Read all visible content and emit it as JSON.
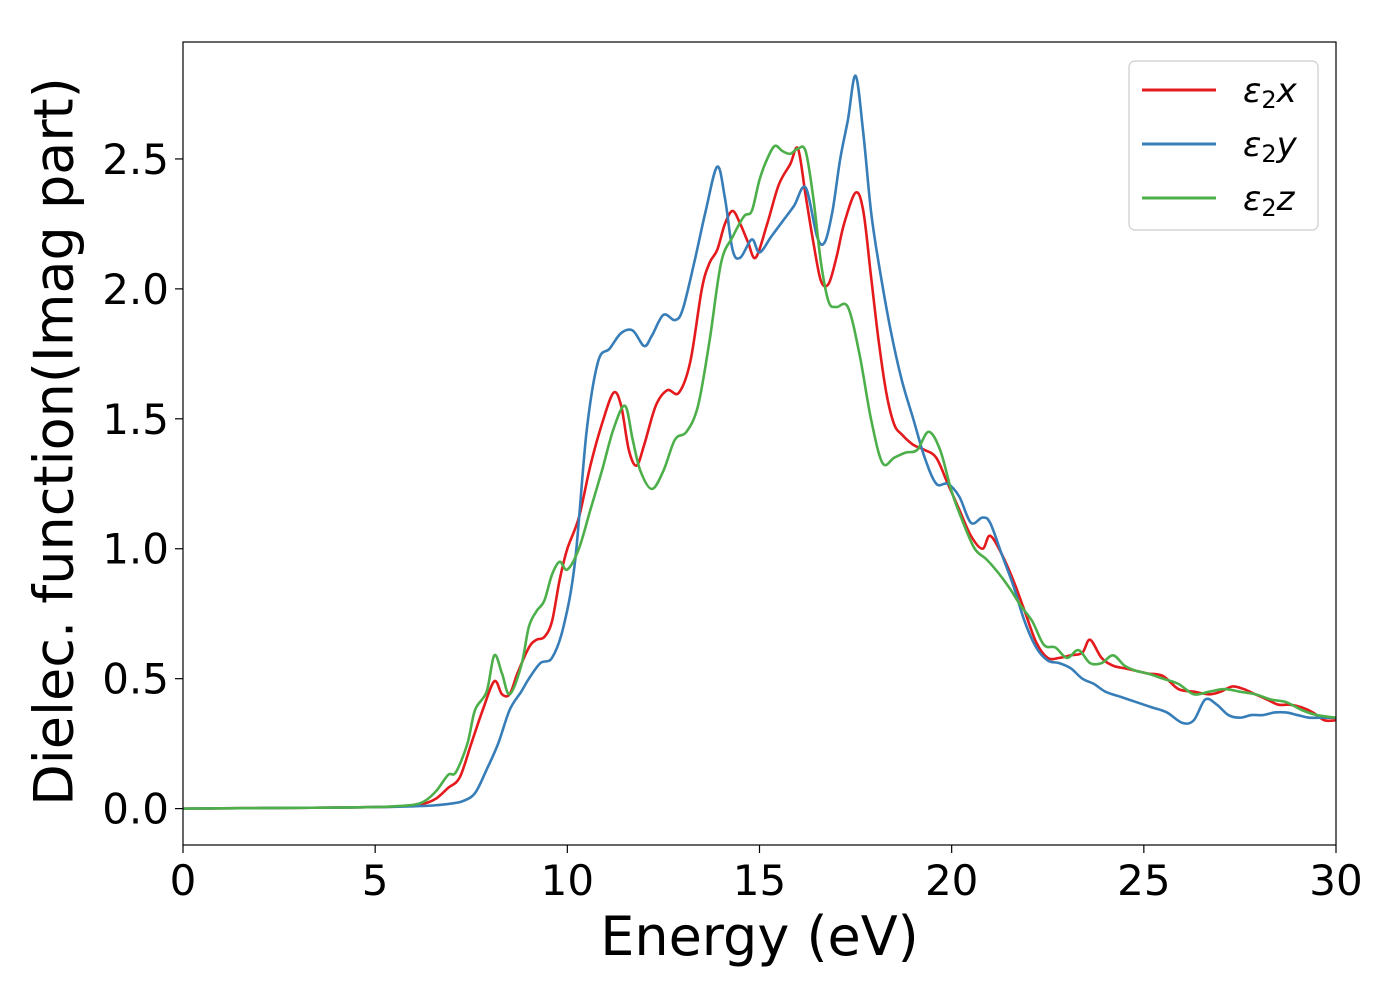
{
  "chart_data": {
    "type": "line",
    "title": "",
    "xlabel": "Energy (eV)",
    "ylabel": "Dielec. function(Imag part)",
    "xlim": [
      0,
      30
    ],
    "ylim": [
      -0.14,
      2.95
    ],
    "xticks": [
      0,
      5,
      10,
      15,
      20,
      25,
      30
    ],
    "yticks": [
      0.0,
      0.5,
      1.0,
      1.5,
      2.0,
      2.5
    ],
    "xtick_labels": [
      "0",
      "5",
      "10",
      "15",
      "20",
      "25",
      "30"
    ],
    "ytick_labels": [
      "0.0",
      "0.5",
      "1.0",
      "1.5",
      "2.0",
      "2.5"
    ],
    "grid": false,
    "legend_position": "top-right",
    "series": [
      {
        "name": "ε₂x",
        "legend_main": "ε",
        "legend_sub": "2",
        "legend_suffix": "x",
        "color": "#e41a1c",
        "x": [
          0,
          1,
          2,
          3,
          4,
          5,
          5.5,
          6,
          6.3,
          6.6,
          6.9,
          7.2,
          7.5,
          7.8,
          8.1,
          8.3,
          8.5,
          8.7,
          9.0,
          9.2,
          9.4,
          9.6,
          9.8,
          10.0,
          10.3,
          10.6,
          10.9,
          11.2,
          11.4,
          11.6,
          11.8,
          12.0,
          12.3,
          12.6,
          12.9,
          13.2,
          13.5,
          13.7,
          13.9,
          14.1,
          14.3,
          14.5,
          14.7,
          14.9,
          15.2,
          15.5,
          15.8,
          16.0,
          16.2,
          16.4,
          16.6,
          16.8,
          17.0,
          17.2,
          17.5,
          17.7,
          17.9,
          18.1,
          18.3,
          18.5,
          18.7,
          19.0,
          19.3,
          19.6,
          19.9,
          20.2,
          20.5,
          20.8,
          21.0,
          21.3,
          21.6,
          21.9,
          22.2,
          22.5,
          22.8,
          23.1,
          23.4,
          23.6,
          23.9,
          24.2,
          24.5,
          24.8,
          25.1,
          25.5,
          25.9,
          26.3,
          26.7,
          27.0,
          27.3,
          27.6,
          27.9,
          28.2,
          28.5,
          28.8,
          29.1,
          29.4,
          29.7,
          30.0
        ],
        "y": [
          0.0,
          0.001,
          0.002,
          0.003,
          0.004,
          0.006,
          0.008,
          0.012,
          0.02,
          0.04,
          0.08,
          0.12,
          0.25,
          0.38,
          0.49,
          0.44,
          0.44,
          0.52,
          0.62,
          0.65,
          0.66,
          0.72,
          0.88,
          1.0,
          1.12,
          1.32,
          1.48,
          1.6,
          1.55,
          1.38,
          1.32,
          1.4,
          1.55,
          1.61,
          1.6,
          1.72,
          2.0,
          2.1,
          2.15,
          2.25,
          2.3,
          2.25,
          2.18,
          2.12,
          2.25,
          2.4,
          2.48,
          2.54,
          2.36,
          2.18,
          2.03,
          2.02,
          2.12,
          2.25,
          2.37,
          2.3,
          2.05,
          1.8,
          1.6,
          1.48,
          1.44,
          1.4,
          1.38,
          1.35,
          1.25,
          1.15,
          1.05,
          1.0,
          1.05,
          0.98,
          0.88,
          0.76,
          0.64,
          0.58,
          0.58,
          0.59,
          0.6,
          0.65,
          0.58,
          0.55,
          0.54,
          0.53,
          0.52,
          0.51,
          0.46,
          0.45,
          0.44,
          0.45,
          0.47,
          0.46,
          0.44,
          0.42,
          0.4,
          0.4,
          0.39,
          0.37,
          0.34,
          0.34
        ]
      },
      {
        "name": "ε₂y",
        "legend_main": "ε",
        "legend_sub": "2",
        "legend_suffix": "y",
        "color": "#377eb8",
        "x": [
          0,
          1,
          2,
          3,
          4,
          5,
          5.5,
          6,
          6.5,
          7.0,
          7.3,
          7.6,
          7.9,
          8.2,
          8.5,
          8.8,
          9.0,
          9.3,
          9.6,
          9.9,
          10.2,
          10.5,
          10.8,
          11.1,
          11.4,
          11.7,
          12.0,
          12.2,
          12.5,
          12.8,
          13.0,
          13.3,
          13.6,
          13.9,
          14.1,
          14.3,
          14.5,
          14.8,
          15.0,
          15.3,
          15.6,
          15.9,
          16.2,
          16.5,
          16.7,
          16.9,
          17.1,
          17.3,
          17.5,
          17.7,
          17.9,
          18.1,
          18.4,
          18.7,
          19.0,
          19.3,
          19.6,
          19.9,
          20.2,
          20.5,
          20.8,
          21.0,
          21.3,
          21.6,
          21.9,
          22.2,
          22.5,
          22.8,
          23.1,
          23.4,
          23.7,
          24.0,
          24.4,
          24.8,
          25.2,
          25.6,
          26.0,
          26.3,
          26.6,
          26.9,
          27.2,
          27.5,
          27.8,
          28.1,
          28.4,
          28.7,
          29.0,
          29.3,
          29.6,
          30.0
        ],
        "y": [
          0.0,
          0.001,
          0.002,
          0.003,
          0.004,
          0.006,
          0.007,
          0.009,
          0.012,
          0.02,
          0.03,
          0.06,
          0.15,
          0.25,
          0.38,
          0.45,
          0.5,
          0.56,
          0.58,
          0.7,
          0.95,
          1.45,
          1.72,
          1.77,
          1.83,
          1.84,
          1.78,
          1.82,
          1.9,
          1.88,
          1.92,
          2.1,
          2.3,
          2.47,
          2.35,
          2.15,
          2.12,
          2.19,
          2.14,
          2.2,
          2.26,
          2.32,
          2.39,
          2.2,
          2.18,
          2.3,
          2.5,
          2.65,
          2.82,
          2.6,
          2.3,
          2.1,
          1.85,
          1.65,
          1.5,
          1.35,
          1.25,
          1.25,
          1.2,
          1.1,
          1.12,
          1.1,
          0.98,
          0.86,
          0.72,
          0.62,
          0.57,
          0.56,
          0.54,
          0.5,
          0.48,
          0.45,
          0.43,
          0.41,
          0.39,
          0.37,
          0.33,
          0.34,
          0.42,
          0.4,
          0.36,
          0.35,
          0.36,
          0.36,
          0.37,
          0.37,
          0.36,
          0.35,
          0.35,
          0.35
        ]
      },
      {
        "name": "ε₂z",
        "legend_main": "ε",
        "legend_sub": "2",
        "legend_suffix": "z",
        "color": "#4daf4a",
        "x": [
          0,
          1,
          2,
          3,
          4,
          5,
          5.5,
          6,
          6.3,
          6.6,
          6.9,
          7.1,
          7.4,
          7.6,
          7.9,
          8.1,
          8.3,
          8.5,
          8.8,
          9.0,
          9.2,
          9.4,
          9.6,
          9.8,
          10.0,
          10.3,
          10.6,
          10.9,
          11.2,
          11.5,
          11.7,
          11.9,
          12.2,
          12.5,
          12.8,
          13.1,
          13.4,
          13.7,
          14.0,
          14.3,
          14.6,
          14.8,
          15.0,
          15.2,
          15.4,
          15.6,
          15.8,
          16.0,
          16.2,
          16.4,
          16.6,
          16.8,
          17.0,
          17.3,
          17.6,
          17.9,
          18.2,
          18.5,
          18.8,
          19.1,
          19.4,
          19.7,
          20.0,
          20.3,
          20.6,
          20.9,
          21.2,
          21.5,
          21.8,
          22.1,
          22.4,
          22.7,
          23.0,
          23.3,
          23.6,
          23.9,
          24.2,
          24.5,
          24.8,
          25.1,
          25.5,
          25.9,
          26.3,
          26.7,
          27.1,
          27.5,
          27.9,
          28.3,
          28.7,
          29.1,
          29.5,
          30.0
        ],
        "y": [
          0.0,
          0.001,
          0.002,
          0.003,
          0.004,
          0.006,
          0.009,
          0.015,
          0.03,
          0.07,
          0.13,
          0.14,
          0.25,
          0.38,
          0.45,
          0.59,
          0.52,
          0.44,
          0.55,
          0.7,
          0.76,
          0.8,
          0.9,
          0.95,
          0.92,
          1.0,
          1.15,
          1.3,
          1.46,
          1.55,
          1.42,
          1.3,
          1.23,
          1.3,
          1.42,
          1.45,
          1.55,
          1.8,
          2.1,
          2.2,
          2.28,
          2.3,
          2.42,
          2.5,
          2.55,
          2.53,
          2.52,
          2.54,
          2.53,
          2.35,
          2.1,
          1.95,
          1.93,
          1.93,
          1.75,
          1.5,
          1.33,
          1.35,
          1.37,
          1.38,
          1.45,
          1.38,
          1.22,
          1.1,
          1.0,
          0.96,
          0.91,
          0.85,
          0.78,
          0.72,
          0.63,
          0.62,
          0.58,
          0.61,
          0.56,
          0.56,
          0.59,
          0.55,
          0.53,
          0.52,
          0.5,
          0.48,
          0.44,
          0.45,
          0.46,
          0.45,
          0.44,
          0.42,
          0.41,
          0.38,
          0.36,
          0.35
        ]
      }
    ]
  }
}
